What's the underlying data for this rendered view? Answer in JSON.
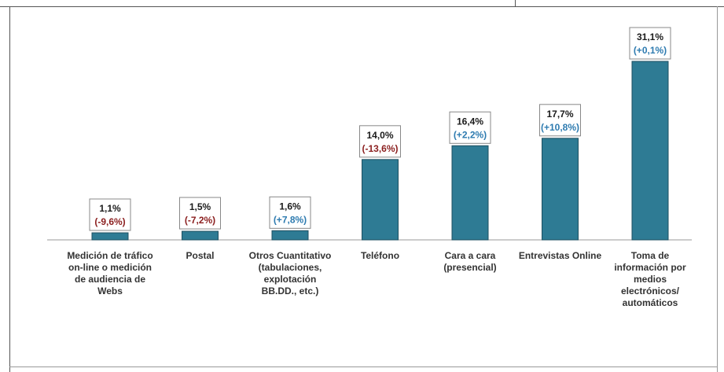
{
  "chart_data": {
    "type": "bar",
    "categories": [
      "Medición de tráfico\non-line o medición\nde audiencia de\nWebs",
      "Postal",
      "Otros Cuantitativo\n(tabulaciones,\nexplotación\nBB.DD., etc.)",
      "Teléfono",
      "Cara a cara\n(presencial)",
      "Entrevistas Online",
      "Toma de\ninformación por\nmedios\nelectrónicos/\nautomáticos"
    ],
    "values": [
      1.1,
      1.5,
      1.6,
      14.0,
      16.4,
      17.7,
      31.1
    ],
    "value_labels": [
      "1,1%",
      "1,5%",
      "1,6%",
      "14,0%",
      "16,4%",
      "17,7%",
      "31,1%"
    ],
    "change_labels": [
      "(-9,6%)",
      "(-7,2%)",
      "(+7,8%)",
      "(-13,6%)",
      "(+2,2%)",
      "(+10,8%)",
      "(+0,1%)"
    ],
    "change_values": [
      -9.6,
      -7.2,
      7.8,
      -13.6,
      2.2,
      10.8,
      0.1
    ],
    "ylim": [
      0,
      33
    ],
    "grid": false,
    "colors": {
      "bar": "#2e7b94",
      "bar_edge": "#1d4f60",
      "positive": "#2e7bb0",
      "negative": "#8b1f1f",
      "value_text": "#1a1a1a",
      "label_box_border": "#888888"
    }
  }
}
